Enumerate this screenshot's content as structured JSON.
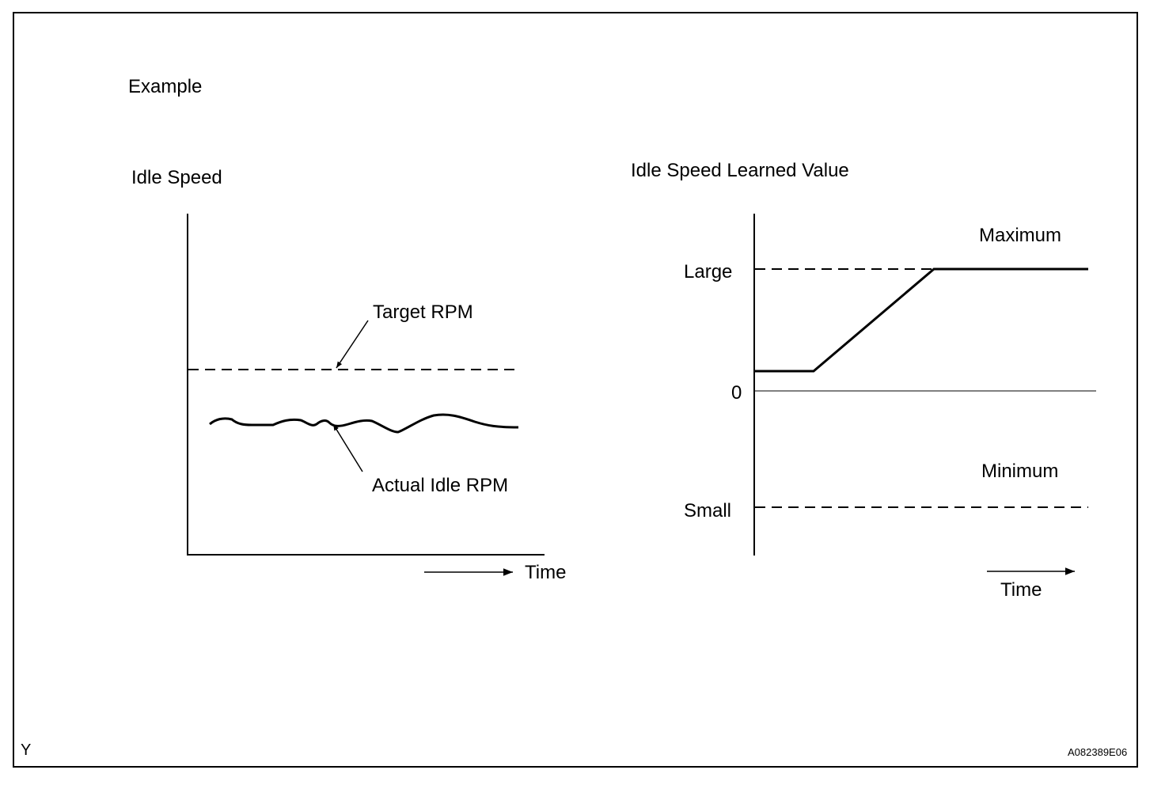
{
  "header": {
    "example_label": "Example"
  },
  "left_chart": {
    "title": "Idle Speed",
    "target_label": "Target RPM",
    "actual_label": "Actual Idle RPM",
    "time_label": "Time"
  },
  "right_chart": {
    "title": "Idle Speed Learned Value",
    "max_label": "Maximum",
    "min_label": "Minimum",
    "large_label": "Large",
    "zero_label": "0",
    "small_label": "Small",
    "time_label": "Time"
  },
  "footer": {
    "corner_mark": "Y",
    "figure_code": "A082389E06"
  }
}
